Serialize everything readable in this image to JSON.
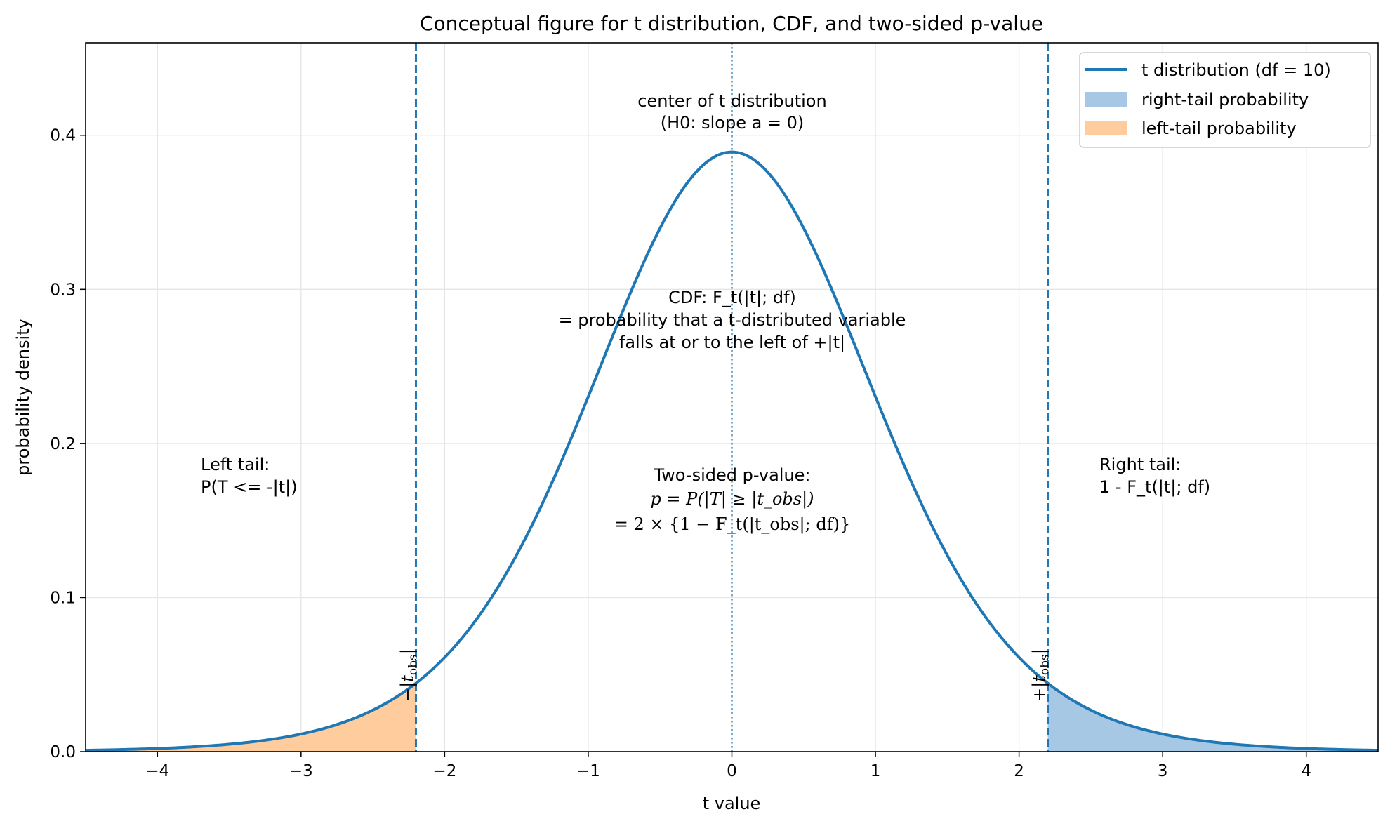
{
  "chart_data": {
    "type": "line",
    "title": "Conceptual figure for t distribution, CDF, and two-sided p-value",
    "xlabel": "t value",
    "ylabel": "probability density",
    "xlim": [
      -4.5,
      4.5
    ],
    "ylim": [
      0.0,
      0.46
    ],
    "x_ticks": [
      -4,
      -3,
      -2,
      -1,
      0,
      1,
      2,
      3,
      4
    ],
    "x_tick_labels": [
      "−4",
      "−3",
      "−2",
      "−1",
      "0",
      "1",
      "2",
      "3",
      "4"
    ],
    "y_ticks": [
      0.0,
      0.1,
      0.2,
      0.3,
      0.4
    ],
    "y_tick_labels": [
      "0.0",
      "0.1",
      "0.2",
      "0.3",
      "0.4"
    ],
    "grid": true,
    "legend_position": "top-right",
    "colors": {
      "curve": "#1f77b4",
      "right_tail_fill": "#a6c8e4",
      "left_tail_fill": "#ffcc9e",
      "grid": "#e5e5e5"
    },
    "series": [
      {
        "name": "t distribution (df = 10)",
        "kind": "line",
        "df": 10
      }
    ],
    "fills": [
      {
        "name": "right-tail probability",
        "from": 2.2,
        "to": 4.5
      },
      {
        "name": "left-tail probability",
        "from": -4.5,
        "to": -2.2
      }
    ],
    "vlines": [
      {
        "x": -2.2,
        "style": "dashed"
      },
      {
        "x": 2.2,
        "style": "dashed"
      },
      {
        "x": 0,
        "style": "dotted"
      }
    ],
    "vline_labels": [
      {
        "x": -2.2,
        "prefix": "−",
        "tail": "obs"
      },
      {
        "x": 2.2,
        "prefix": "+",
        "tail": "obs"
      }
    ],
    "annotations": {
      "center": [
        "center of t distribution",
        "(H0: slope a = 0)"
      ],
      "cdf": [
        "CDF: F_t(|t|; df)",
        "= probability that a t-distributed variable",
        "falls at or to the left of +|t|"
      ],
      "left_tail": [
        "Left tail:",
        "P(T <= -|t|)"
      ],
      "right_tail": [
        "Right tail:",
        "1 - F_t(|t|; df)"
      ],
      "p_value": {
        "line1": "Two-sided p-value:",
        "line2": "p = P(|T| ≥ |t_obs|)",
        "line3": "= 2 × {1 − F_t(|t_obs|; df)}"
      }
    }
  }
}
